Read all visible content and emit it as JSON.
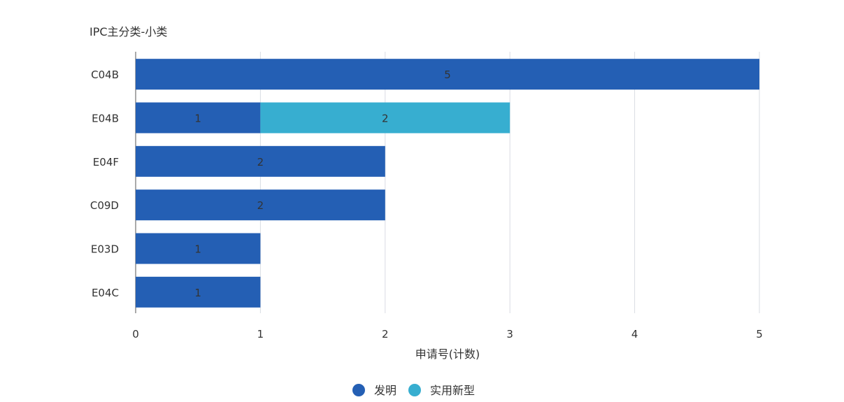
{
  "chart_data": {
    "type": "bar",
    "orientation": "horizontal",
    "stacked": true,
    "title": "IPC主分类-小类",
    "xlabel": "申请号(计数)",
    "ylabel": "",
    "categories": [
      "C04B",
      "E04B",
      "E04F",
      "C09D",
      "E03D",
      "E04C"
    ],
    "series": [
      {
        "name": "发明",
        "color": "#245fb4",
        "values": [
          5,
          1,
          2,
          2,
          1,
          1
        ]
      },
      {
        "name": "实用新型",
        "color": "#37aed0",
        "values": [
          0,
          2,
          0,
          0,
          0,
          0
        ]
      }
    ],
    "xlim": [
      0,
      5
    ],
    "xticks": [
      "0",
      "1",
      "2",
      "3",
      "4",
      "5"
    ],
    "grid": true,
    "legend": "bottom-center"
  }
}
